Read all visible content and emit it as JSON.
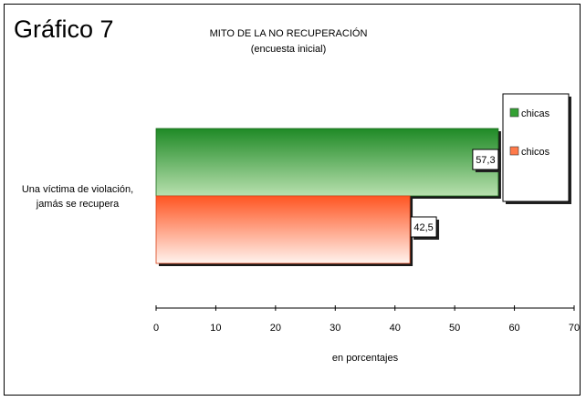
{
  "header": {
    "label": "Gráfico 7"
  },
  "chart_data": {
    "type": "bar",
    "orientation": "horizontal",
    "title": "MITO DE LA NO RECUPERACIÓN",
    "subtitle": "(encuesta inicial)",
    "categories": [
      "Una víctima de violación, jamás se recupera"
    ],
    "category_lines": [
      "Una víctima de violación,",
      "jamás se recupera"
    ],
    "series": [
      {
        "name": "chicas",
        "values": [
          57.3
        ],
        "labels": [
          "57,3"
        ],
        "color": "#2e8b2e"
      },
      {
        "name": "chicos",
        "values": [
          42.5
        ],
        "labels": [
          "42,5"
        ],
        "color": "#ff5a2a"
      }
    ],
    "xlabel": "en porcentajes",
    "xlim": [
      0,
      70
    ],
    "xticks": [
      0,
      10,
      20,
      30,
      40,
      50,
      60,
      70
    ],
    "grid": false,
    "legend": "right"
  }
}
